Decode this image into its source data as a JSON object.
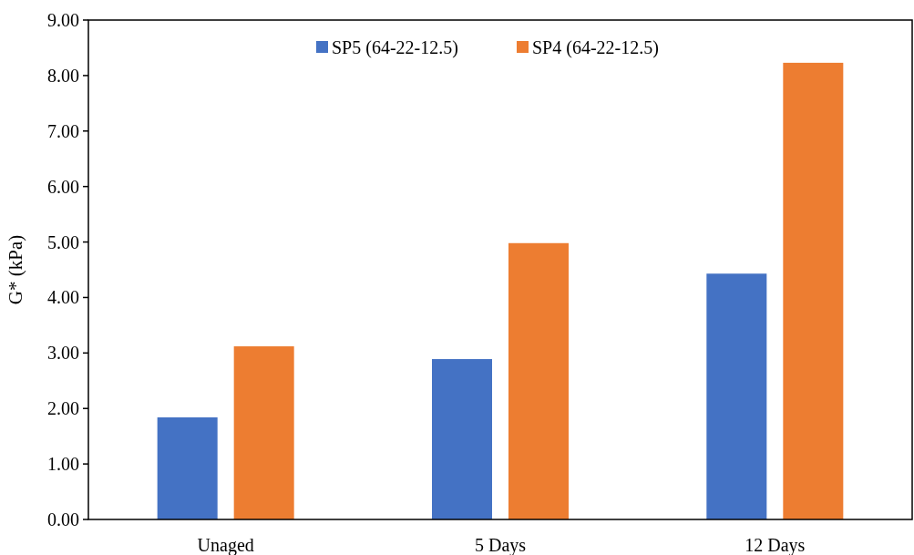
{
  "chart_data": {
    "type": "bar",
    "ylabel": "G* (kPa)",
    "categories": [
      "Unaged",
      "5 Days",
      "12 Days"
    ],
    "series": [
      {
        "name": "SP5 (64-22-12.5)",
        "color": "#4472c4",
        "values": [
          1.84,
          2.89,
          4.43
        ]
      },
      {
        "name": "SP4 (64-22-12.5)",
        "color": "#ed7d31",
        "values": [
          3.12,
          4.98,
          8.23
        ]
      }
    ],
    "ylim": [
      0,
      9
    ],
    "yticks": [
      {
        "value": 0,
        "label": "0.00"
      },
      {
        "value": 1,
        "label": "1.00"
      },
      {
        "value": 2,
        "label": "2.00"
      },
      {
        "value": 3,
        "label": "3.00"
      },
      {
        "value": 4,
        "label": "4.00"
      },
      {
        "value": 5,
        "label": "5.00"
      },
      {
        "value": 6,
        "label": "6.00"
      },
      {
        "value": 7,
        "label": "7.00"
      },
      {
        "value": 8,
        "label": "8.00"
      },
      {
        "value": 9,
        "label": "9.00"
      }
    ],
    "grid": false,
    "legend": "top"
  }
}
